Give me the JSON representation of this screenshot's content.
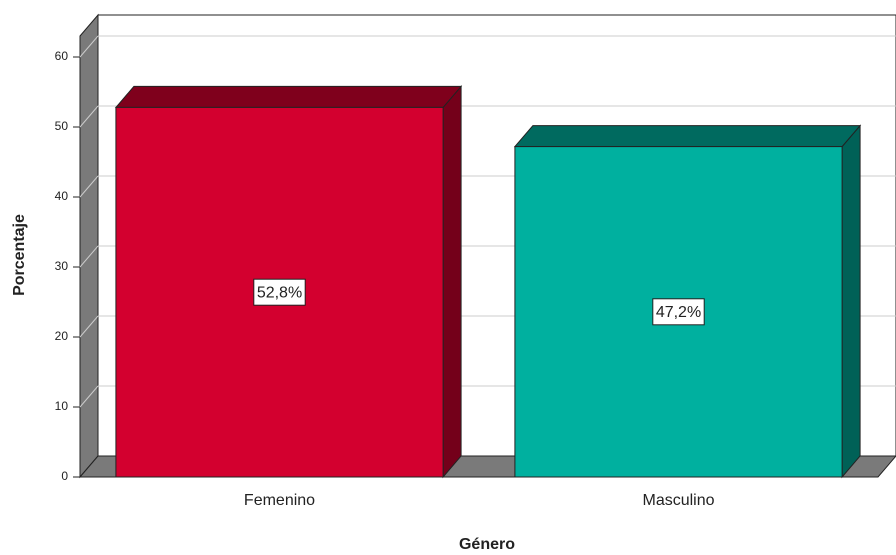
{
  "chart_data": {
    "type": "bar3d",
    "x_label": "Género",
    "y_label": "Porcentaje",
    "categories": [
      "Femenino",
      "Masculino"
    ],
    "values": [
      52.8,
      47.2
    ],
    "value_labels": [
      "52,8%",
      "47,2%"
    ],
    "colors": [
      "#d3002f",
      "#00b09f"
    ],
    "ylim": [
      0,
      63
    ],
    "yticks": [
      0,
      10,
      20,
      30,
      40,
      50,
      60
    ],
    "grid": true
  }
}
